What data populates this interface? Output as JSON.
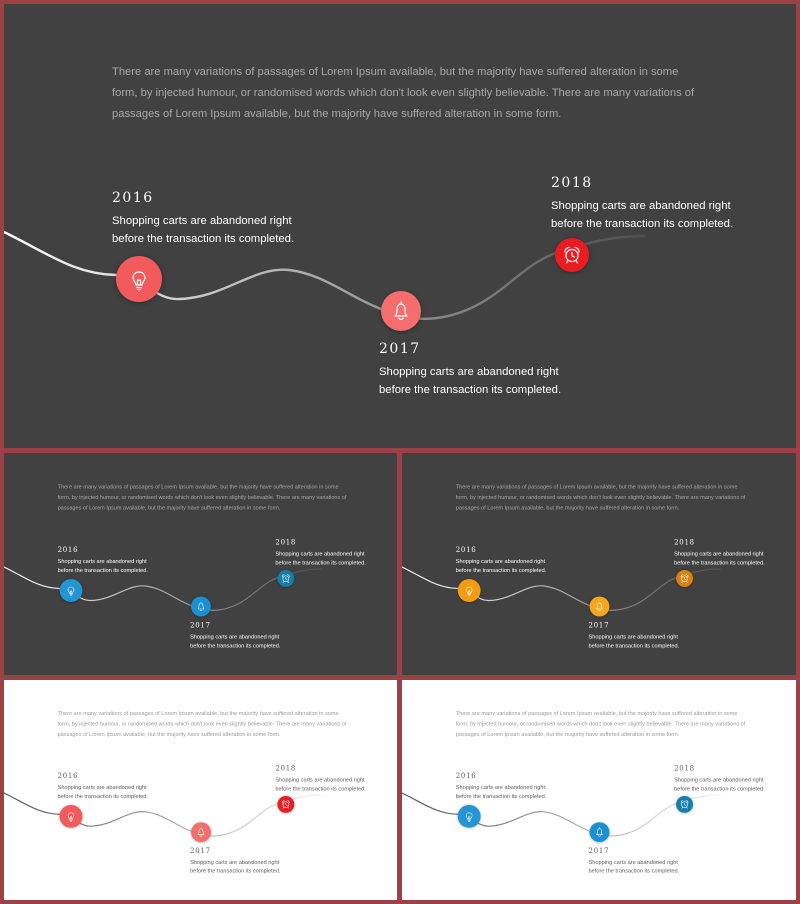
{
  "intro_text": "There are many variations of passages of Lorem Ipsum available, but the majority have suffered alteration in some form, by injected humour, or randomised words which don't look even slightly believable. There are many variations of passages of Lorem Ipsum available, but the majority have suffered alteration in some form.",
  "milestones": [
    {
      "year": "2016",
      "text": "Shopping carts are abandoned right before the transaction its completed.",
      "icon": "lightbulb-icon"
    },
    {
      "year": "2017",
      "text": "Shopping carts are abandoned right before the transaction its completed.",
      "icon": "bell-icon"
    },
    {
      "year": "2018",
      "text": "Shopping carts are abandoned right before the transaction its completed.",
      "icon": "alarm-clock-icon"
    }
  ],
  "variants": [
    {
      "theme": "dark",
      "line": "#ffffff",
      "colors": [
        "#f25a5c",
        "#f46e6e",
        "#ea1c21"
      ]
    },
    {
      "theme": "dark",
      "line": "#ffffff",
      "colors": [
        "#2594d2",
        "#1b8fd3",
        "#157eaa"
      ]
    },
    {
      "theme": "dark",
      "line": "#ffffff",
      "colors": [
        "#f39c12",
        "#f6a71f",
        "#d9830e"
      ]
    },
    {
      "theme": "light",
      "line": "#555555",
      "colors": [
        "#f25a5c",
        "#f46e6e",
        "#ea1c21"
      ]
    },
    {
      "theme": "light",
      "line": "#555555",
      "colors": [
        "#2594d2",
        "#1b8fd3",
        "#157eaa"
      ]
    }
  ]
}
